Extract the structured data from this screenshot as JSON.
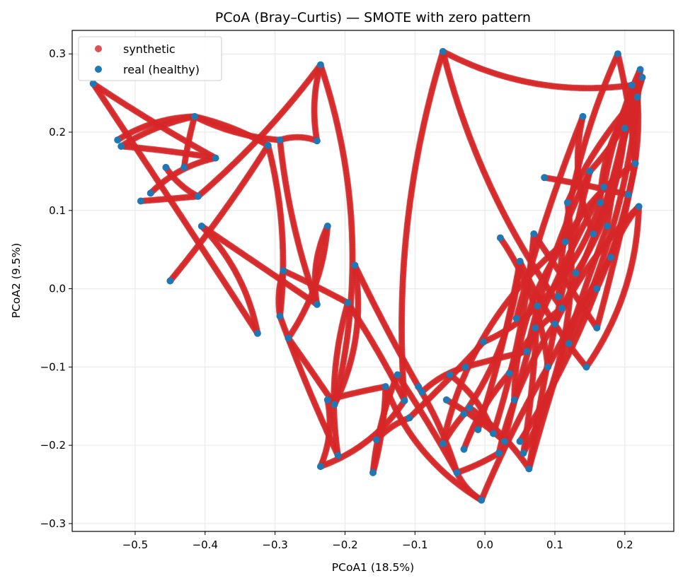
{
  "chart_data": {
    "type": "scatter",
    "title": "PCoA (Bray–Curtis) — SMOTE with zero pattern",
    "xlabel": "PCoA1 (18.5%)",
    "ylabel": "PCoA2 (9.5%)",
    "xlim": [
      -0.59,
      0.27
    ],
    "ylim": [
      -0.31,
      0.33
    ],
    "xticks": [
      -0.5,
      -0.4,
      -0.3,
      -0.2,
      -0.1,
      0.0,
      0.1,
      0.2
    ],
    "yticks": [
      -0.3,
      -0.2,
      -0.1,
      0.0,
      0.1,
      0.2,
      0.3
    ],
    "xtick_labels": [
      "−0.5",
      "−0.4",
      "−0.3",
      "−0.2",
      "−0.1",
      "0.0",
      "0.1",
      "0.2"
    ],
    "ytick_labels": [
      "−0.3",
      "−0.2",
      "−0.1",
      "0.0",
      "0.1",
      "0.2",
      "0.3"
    ],
    "grid": true,
    "legend_position": "top-left",
    "series": [
      {
        "name": "synthetic",
        "color": "#d62728",
        "role": "synthetic",
        "description_paths": "dense interpolated trails between real points"
      },
      {
        "name": "real (healthy)",
        "color": "#1f77b4",
        "role": "real",
        "points": [
          [
            -0.56,
            0.262
          ],
          [
            -0.525,
            0.19
          ],
          [
            -0.52,
            0.182
          ],
          [
            -0.492,
            0.112
          ],
          [
            -0.478,
            0.122
          ],
          [
            -0.456,
            0.155
          ],
          [
            -0.45,
            0.01
          ],
          [
            -0.43,
            0.155
          ],
          [
            -0.415,
            0.22
          ],
          [
            -0.41,
            0.118
          ],
          [
            -0.405,
            0.08
          ],
          [
            -0.385,
            0.167
          ],
          [
            -0.325,
            -0.057
          ],
          [
            -0.31,
            0.183
          ],
          [
            -0.293,
            0.19
          ],
          [
            -0.293,
            -0.035
          ],
          [
            -0.288,
            0.023
          ],
          [
            -0.281,
            -0.063
          ],
          [
            -0.24,
            0.189
          ],
          [
            -0.24,
            -0.02
          ],
          [
            -0.235,
            0.286
          ],
          [
            -0.235,
            -0.227
          ],
          [
            -0.225,
            0.08
          ],
          [
            -0.225,
            -0.142
          ],
          [
            -0.215,
            -0.148
          ],
          [
            -0.21,
            -0.213
          ],
          [
            -0.196,
            -0.018
          ],
          [
            -0.186,
            0.03
          ],
          [
            -0.16,
            -0.235
          ],
          [
            -0.155,
            -0.193
          ],
          [
            -0.142,
            -0.125
          ],
          [
            -0.125,
            -0.11
          ],
          [
            -0.115,
            -0.143
          ],
          [
            -0.108,
            -0.165
          ],
          [
            -0.095,
            -0.125
          ],
          [
            -0.09,
            -0.132
          ],
          [
            -0.06,
            0.303
          ],
          [
            -0.06,
            -0.198
          ],
          [
            -0.055,
            -0.142
          ],
          [
            -0.05,
            -0.11
          ],
          [
            -0.04,
            -0.235
          ],
          [
            -0.03,
            -0.205
          ],
          [
            -0.03,
            -0.16
          ],
          [
            -0.028,
            -0.1
          ],
          [
            -0.022,
            -0.152
          ],
          [
            -0.01,
            -0.18
          ],
          [
            -0.005,
            -0.27
          ],
          [
            -0.002,
            -0.068
          ],
          [
            0.012,
            -0.185
          ],
          [
            0.022,
            0.065
          ],
          [
            0.02,
            -0.21
          ],
          [
            0.028,
            -0.195
          ],
          [
            0.035,
            -0.108
          ],
          [
            0.042,
            -0.142
          ],
          [
            0.045,
            -0.038
          ],
          [
            0.05,
            0.035
          ],
          [
            0.05,
            -0.195
          ],
          [
            0.055,
            -0.21
          ],
          [
            0.06,
            -0.08
          ],
          [
            0.063,
            -0.23
          ],
          [
            0.07,
            0.07
          ],
          [
            0.072,
            -0.05
          ],
          [
            0.075,
            -0.022
          ],
          [
            0.085,
            0.142
          ],
          [
            0.09,
            -0.1
          ],
          [
            0.1,
            -0.045
          ],
          [
            0.105,
            -0.01
          ],
          [
            0.11,
            -0.025
          ],
          [
            0.115,
            0.06
          ],
          [
            0.118,
            0.11
          ],
          [
            0.12,
            -0.07
          ],
          [
            0.13,
            0.02
          ],
          [
            0.14,
            0.22
          ],
          [
            0.145,
            -0.1
          ],
          [
            0.15,
            0.15
          ],
          [
            0.155,
            0.07
          ],
          [
            0.16,
            0.0
          ],
          [
            0.16,
            -0.05
          ],
          [
            0.165,
            0.11
          ],
          [
            0.17,
            0.13
          ],
          [
            0.175,
            0.08
          ],
          [
            0.18,
            0.04
          ],
          [
            0.19,
            0.3
          ],
          [
            0.2,
            0.205
          ],
          [
            0.205,
            0.12
          ],
          [
            0.21,
            0.26
          ],
          [
            0.215,
            0.16
          ],
          [
            0.218,
            0.245
          ],
          [
            0.22,
            0.105
          ],
          [
            0.222,
            0.28
          ],
          [
            0.225,
            0.27
          ]
        ]
      }
    ]
  }
}
